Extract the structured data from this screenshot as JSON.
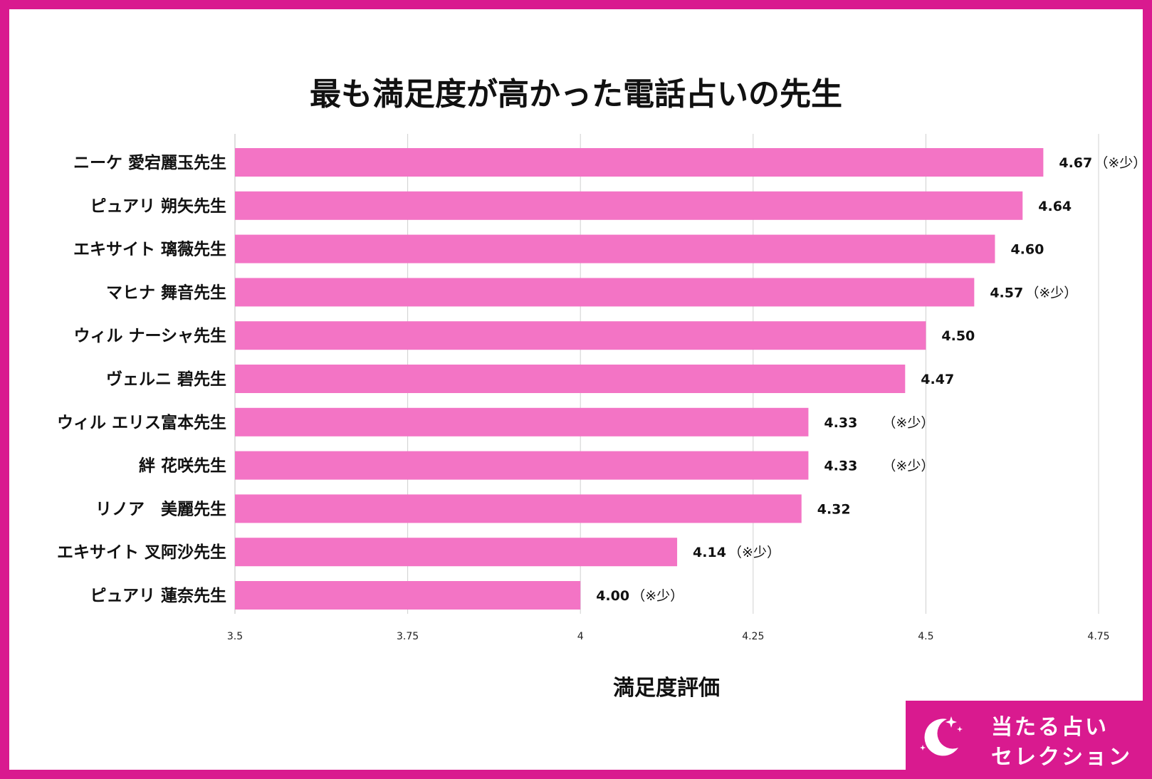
{
  "title": "最も満足度が高かった電話占いの先生",
  "badge": {
    "line1": "当たる占い",
    "line2": "セレクション"
  },
  "colors": {
    "bar": "#f374c5",
    "frame": "#d91a8f",
    "grid": "#d0d0d0"
  },
  "chart_data": {
    "type": "bar",
    "orientation": "horizontal",
    "title": "最も満足度が高かった電話占いの先生",
    "xlabel": "満足度評価",
    "ylabel": "",
    "xlim": [
      3.5,
      4.75
    ],
    "xticks": [
      "3.5",
      "3.75",
      "4",
      "4.25",
      "4.5",
      "4.75"
    ],
    "grid": true,
    "categories": [
      "ニーケ 愛宕麗玉先生",
      "ピュアリ 朔矢先生",
      "エキサイト 璃薇先生",
      "マヒナ 舞音先生",
      "ウィル ナーシャ先生",
      "ヴェルニ 碧先生",
      "ウィル エリス富本先生",
      "絆 花咲先生",
      "リノア　美麗先生",
      "エキサイト 叉阿沙先生",
      "ピュアリ 蓮奈先生"
    ],
    "values": [
      4.67,
      4.64,
      4.6,
      4.57,
      4.5,
      4.47,
      4.33,
      4.33,
      4.32,
      4.14,
      4.0
    ],
    "value_labels": [
      "4.67",
      "4.64",
      "4.60",
      "4.57",
      "4.50",
      "4.47",
      "4.33",
      "4.33",
      "4.32",
      "4.14",
      "4.00"
    ],
    "notes": [
      "（※少）",
      "",
      "",
      "（※少）",
      "",
      "",
      "（※少）",
      "（※少）",
      "",
      "（※少）",
      "（※少）"
    ]
  }
}
